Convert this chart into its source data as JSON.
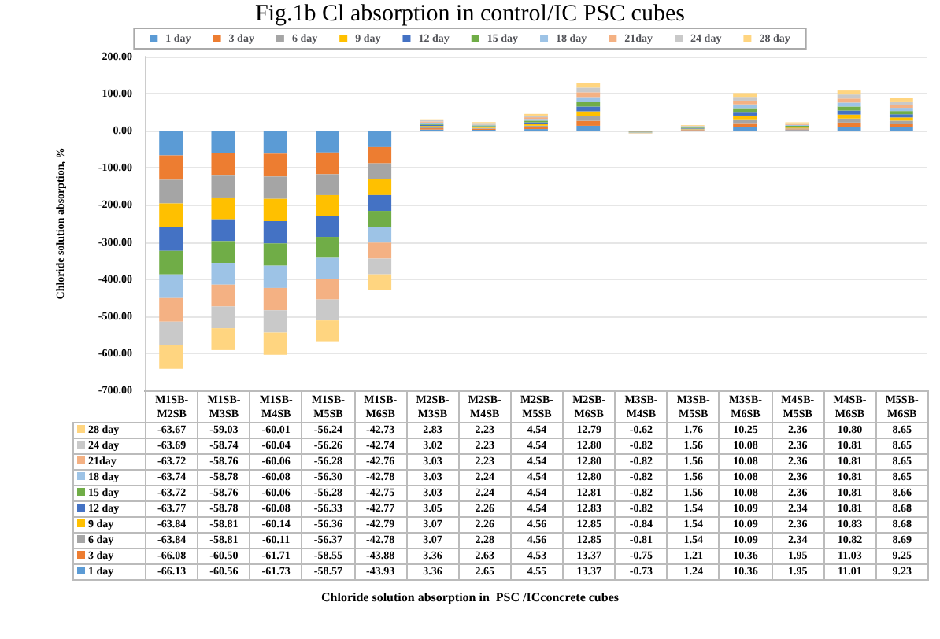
{
  "chart_data": {
    "type": "bar",
    "stacked": true,
    "title": "Fig.1b Cl absorption in control/IC PSC cubes",
    "annotations": [
      "Chloride solution absorption in  PSC /ICconcrete cubes"
    ],
    "ylabel": "Chloride solution absorption, %",
    "categories": [
      "M1SB-M2SB",
      "M1SB-M3SB",
      "M1SB-M4SB",
      "M1SB-M5SB",
      "M1SB-M6SB",
      "M2SB-M3SB",
      "M2SB-M4SB",
      "M2SB-M5SB",
      "M2SB-M6SB",
      "M3SB-M4SB",
      "M3SB-M5SB",
      "M3SB-M6SB",
      "M4SB-M5SB",
      "M4SB-M6SB",
      "M5SB-M6SB"
    ],
    "ylim": [
      -700,
      200
    ],
    "yticks": [
      {
        "value": -700,
        "label": "-700.00"
      },
      {
        "value": -600,
        "label": "-600.00"
      },
      {
        "value": -500,
        "label": "-500.00"
      },
      {
        "value": -400,
        "label": "-400.00"
      },
      {
        "value": -300,
        "label": "-300.00"
      },
      {
        "value": -200,
        "label": "-200.00"
      },
      {
        "value": -100,
        "label": "-100.00"
      },
      {
        "value": 0,
        "label": "0.00"
      },
      {
        "value": 100,
        "label": "100.00"
      },
      {
        "value": 200,
        "label": "200.00"
      }
    ],
    "grid": "y",
    "legend": "top",
    "series": [
      {
        "name": "1 day",
        "color": "#5b9bd5",
        "values": [
          -66.13,
          -60.56,
          -61.73,
          -58.57,
          -43.93,
          3.36,
          2.65,
          4.55,
          13.37,
          -0.73,
          1.24,
          10.36,
          1.95,
          11.01,
          9.23
        ],
        "value_labels": [
          "-66.13",
          "-60.56",
          "-61.73",
          "-58.57",
          "-43.93",
          "3.36",
          "2.65",
          "4.55",
          "13.37",
          "-0.73",
          "1.24",
          "10.36",
          "1.95",
          "11.01",
          "9.23"
        ]
      },
      {
        "name": "3 day",
        "color": "#ed7d31",
        "values": [
          -66.08,
          -60.5,
          -61.71,
          -58.55,
          -43.88,
          3.36,
          2.63,
          4.53,
          13.37,
          -0.75,
          1.21,
          10.36,
          1.95,
          11.03,
          9.25
        ],
        "value_labels": [
          "-66.08",
          "-60.50",
          "-61.71",
          "-58.55",
          "-43.88",
          "3.36",
          "2.63",
          "4.53",
          "13.37",
          "-0.75",
          "1.21",
          "10.36",
          "1.95",
          "11.03",
          "9.25"
        ]
      },
      {
        "name": "6 day",
        "color": "#a5a5a5",
        "values": [
          -63.84,
          -58.81,
          -60.11,
          -56.37,
          -42.78,
          3.07,
          2.28,
          4.56,
          12.85,
          -0.81,
          1.54,
          10.09,
          2.34,
          10.82,
          8.69
        ],
        "value_labels": [
          "-63.84",
          "-58.81",
          "-60.11",
          "-56.37",
          "-42.78",
          "3.07",
          "2.28",
          "4.56",
          "12.85",
          "-0.81",
          "1.54",
          "10.09",
          "2.34",
          "10.82",
          "8.69"
        ]
      },
      {
        "name": "9 day",
        "color": "#ffc000",
        "values": [
          -63.84,
          -58.81,
          -60.14,
          -56.36,
          -42.79,
          3.07,
          2.26,
          4.56,
          12.85,
          -0.84,
          1.54,
          10.09,
          2.36,
          10.83,
          8.68
        ],
        "value_labels": [
          "-63.84",
          "-58.81",
          "-60.14",
          "-56.36",
          "-42.79",
          "3.07",
          "2.26",
          "4.56",
          "12.85",
          "-0.84",
          "1.54",
          "10.09",
          "2.36",
          "10.83",
          "8.68"
        ]
      },
      {
        "name": "12 day",
        "color": "#4472c4",
        "values": [
          -63.77,
          -58.78,
          -60.08,
          -56.33,
          -42.77,
          3.05,
          2.26,
          4.54,
          12.83,
          -0.82,
          1.54,
          10.09,
          2.34,
          10.81,
          8.68
        ],
        "value_labels": [
          "-63.77",
          "-58.78",
          "-60.08",
          "-56.33",
          "-42.77",
          "3.05",
          "2.26",
          "4.54",
          "12.83",
          "-0.82",
          "1.54",
          "10.09",
          "2.34",
          "10.81",
          "8.68"
        ]
      },
      {
        "name": "15 day",
        "color": "#70ad47",
        "values": [
          -63.72,
          -58.76,
          -60.06,
          -56.28,
          -42.75,
          3.03,
          2.24,
          4.54,
          12.81,
          -0.82,
          1.56,
          10.08,
          2.36,
          10.81,
          8.66
        ],
        "value_labels": [
          "-63.72",
          "-58.76",
          "-60.06",
          "-56.28",
          "-42.75",
          "3.03",
          "2.24",
          "4.54",
          "12.81",
          "-0.82",
          "1.56",
          "10.08",
          "2.36",
          "10.81",
          "8.66"
        ]
      },
      {
        "name": "18 day",
        "color": "#9dc3e6",
        "values": [
          -63.74,
          -58.78,
          -60.08,
          -56.3,
          -42.78,
          3.03,
          2.24,
          4.54,
          12.8,
          -0.82,
          1.56,
          10.08,
          2.36,
          10.81,
          8.65
        ],
        "value_labels": [
          "-63.74",
          "-58.78",
          "-60.08",
          "-56.30",
          "-42.78",
          "3.03",
          "2.24",
          "4.54",
          "12.80",
          "-0.82",
          "1.56",
          "10.08",
          "2.36",
          "10.81",
          "8.65"
        ]
      },
      {
        "name": "21day",
        "color": "#f4b183",
        "values": [
          -63.72,
          -58.76,
          -60.06,
          -56.28,
          -42.76,
          3.03,
          2.23,
          4.54,
          12.8,
          -0.82,
          1.56,
          10.08,
          2.36,
          10.81,
          8.65
        ],
        "value_labels": [
          "-63.72",
          "-58.76",
          "-60.06",
          "-56.28",
          "-42.76",
          "3.03",
          "2.23",
          "4.54",
          "12.80",
          "-0.82",
          "1.56",
          "10.08",
          "2.36",
          "10.81",
          "8.65"
        ]
      },
      {
        "name": "24 day",
        "color": "#c9c9c9",
        "values": [
          -63.69,
          -58.74,
          -60.04,
          -56.26,
          -42.74,
          3.02,
          2.23,
          4.54,
          12.8,
          -0.82,
          1.56,
          10.08,
          2.36,
          10.81,
          8.65
        ],
        "value_labels": [
          "-63.69",
          "-58.74",
          "-60.04",
          "-56.26",
          "-42.74",
          "3.02",
          "2.23",
          "4.54",
          "12.80",
          "-0.82",
          "1.56",
          "10.08",
          "2.36",
          "10.81",
          "8.65"
        ]
      },
      {
        "name": "28 day",
        "color": "#ffd580",
        "values": [
          -63.67,
          -59.03,
          -60.01,
          -56.24,
          -42.73,
          2.83,
          2.23,
          4.54,
          12.79,
          -0.62,
          1.76,
          10.25,
          2.36,
          10.8,
          8.65
        ],
        "value_labels": [
          "-63.67",
          "-59.03",
          "-60.01",
          "-56.24",
          "-42.73",
          "2.83",
          "2.23",
          "4.54",
          "12.79",
          "-0.62",
          "1.76",
          "10.25",
          "2.36",
          "10.80",
          "8.65"
        ]
      }
    ]
  }
}
